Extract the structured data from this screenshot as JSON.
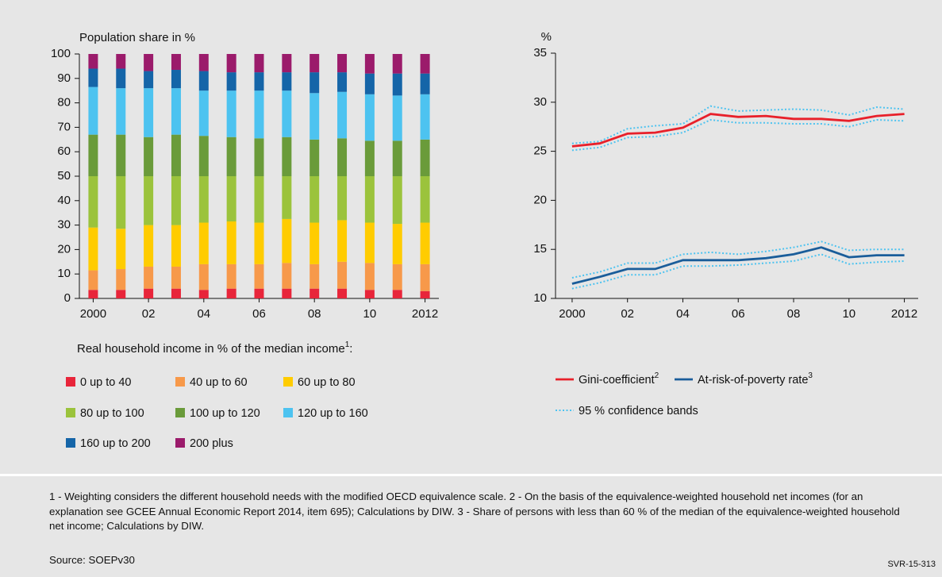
{
  "chart_data": [
    {
      "type": "stacked_bar",
      "y_label": "Population share in %",
      "categories": [
        "2000",
        null,
        "02",
        null,
        "04",
        null,
        "06",
        null,
        "08",
        null,
        "10",
        null,
        "2012"
      ],
      "ylim": [
        0,
        100
      ],
      "yticks": [
        0,
        10,
        20,
        30,
        40,
        50,
        60,
        70,
        80,
        90,
        100
      ],
      "legend_title": "Real household income in % of the median income",
      "legend_title_note": "1",
      "legend_title_end": ":",
      "series": [
        {
          "name": "0 up to 40",
          "color": "#e8253a",
          "values": [
            3.5,
            3.5,
            4,
            4,
            3.5,
            4,
            4,
            4,
            4,
            4,
            3.5,
            3.5,
            3
          ]
        },
        {
          "name": "40 up to 60",
          "color": "#f7994a",
          "values": [
            8,
            8.5,
            9,
            9,
            10.5,
            10,
            10,
            10.5,
            10,
            11,
            11,
            10.5,
            11
          ]
        },
        {
          "name": "60 up to 80",
          "color": "#ffcc00",
          "values": [
            17.5,
            16.5,
            17,
            17,
            17,
            17.5,
            17,
            18,
            17,
            17,
            16.5,
            16.5,
            17
          ]
        },
        {
          "name": "80 up to 100",
          "color": "#9bc33c",
          "values": [
            21,
            21.5,
            20,
            20,
            19,
            18.5,
            19,
            17.5,
            19,
            18,
            19,
            19.5,
            19
          ]
        },
        {
          "name": "100 up to 120",
          "color": "#6a9b3a",
          "values": [
            17,
            17,
            16,
            17,
            16.5,
            16,
            15.5,
            16,
            15,
            15.5,
            14.5,
            14.5,
            15
          ]
        },
        {
          "name": "120 up to 160",
          "color": "#4dc3f0",
          "values": [
            19.5,
            19,
            20,
            19,
            18.5,
            19,
            19.5,
            19,
            19,
            19,
            19,
            18.5,
            18.5
          ]
        },
        {
          "name": "160 up to 200",
          "color": "#1565a8",
          "values": [
            7.5,
            8,
            7,
            7.5,
            8,
            7.5,
            7.5,
            7.5,
            8.5,
            8,
            8.5,
            9,
            8.5
          ]
        },
        {
          "name": "200 plus",
          "color": "#9b1b6b",
          "values": [
            6,
            6,
            7,
            6.5,
            7,
            7.5,
            7.5,
            7.5,
            7.5,
            7.5,
            8,
            8,
            8
          ]
        }
      ]
    },
    {
      "type": "line",
      "y_label": "%",
      "x": [
        2000,
        2001,
        2002,
        2003,
        2004,
        2005,
        2006,
        2007,
        2008,
        2009,
        2010,
        2011,
        2012
      ],
      "xlim": [
        1999.4,
        2012.5
      ],
      "xticks": [
        2000,
        {
          "value": 2002,
          "label": "02"
        },
        {
          "value": 2004,
          "label": "04"
        },
        {
          "value": 2006,
          "label": "06"
        },
        {
          "value": 2008,
          "label": "08"
        },
        {
          "value": 2010,
          "label": "10"
        },
        2012
      ],
      "ylim": [
        10,
        35
      ],
      "yticks": [
        10,
        15,
        20,
        25,
        30,
        35
      ],
      "band_name": "95 % confidence bands",
      "band_color": "#4dc3f0",
      "series": [
        {
          "name": "Gini-coefficient",
          "note": "2",
          "color": "#e8202a",
          "values": [
            25.5,
            25.8,
            26.8,
            26.9,
            27.4,
            28.8,
            28.5,
            28.6,
            28.3,
            28.3,
            28.1,
            28.6,
            28.8
          ],
          "upper": [
            25.8,
            26.0,
            27.3,
            27.6,
            27.8,
            29.6,
            29.1,
            29.2,
            29.3,
            29.2,
            28.7,
            29.5,
            29.3
          ],
          "lower": [
            25.1,
            25.4,
            26.4,
            26.5,
            26.9,
            28.2,
            27.9,
            27.9,
            27.8,
            27.8,
            27.5,
            28.2,
            28.1
          ]
        },
        {
          "name": "At-risk-of-poverty rate",
          "note": "3",
          "color": "#1a5d9a",
          "values": [
            11.5,
            12.2,
            13.0,
            13.0,
            13.9,
            13.9,
            13.9,
            14.1,
            14.5,
            15.2,
            14.2,
            14.4,
            14.4
          ],
          "upper": [
            12.1,
            12.7,
            13.6,
            13.6,
            14.5,
            14.7,
            14.5,
            14.8,
            15.2,
            15.8,
            14.9,
            15.0,
            15.0
          ],
          "lower": [
            11.0,
            11.6,
            12.4,
            12.4,
            13.3,
            13.3,
            13.4,
            13.6,
            13.8,
            14.5,
            13.5,
            13.7,
            13.8
          ]
        }
      ]
    }
  ],
  "footnotes": "1 - Weighting considers the different household needs with the modified OECD equivalence scale. 2 - On the basis of the equivalence-weighted household net incomes (for an explanation see GCEE Annual Economic Report 2014, item 695); Calculations by DIW. 3 - Share of persons with less than 60 % of the median of the equivalence-weighted household net income; Calculations by DIW.",
  "source": "Source: SOEPv30",
  "code": "SVR-15-313"
}
